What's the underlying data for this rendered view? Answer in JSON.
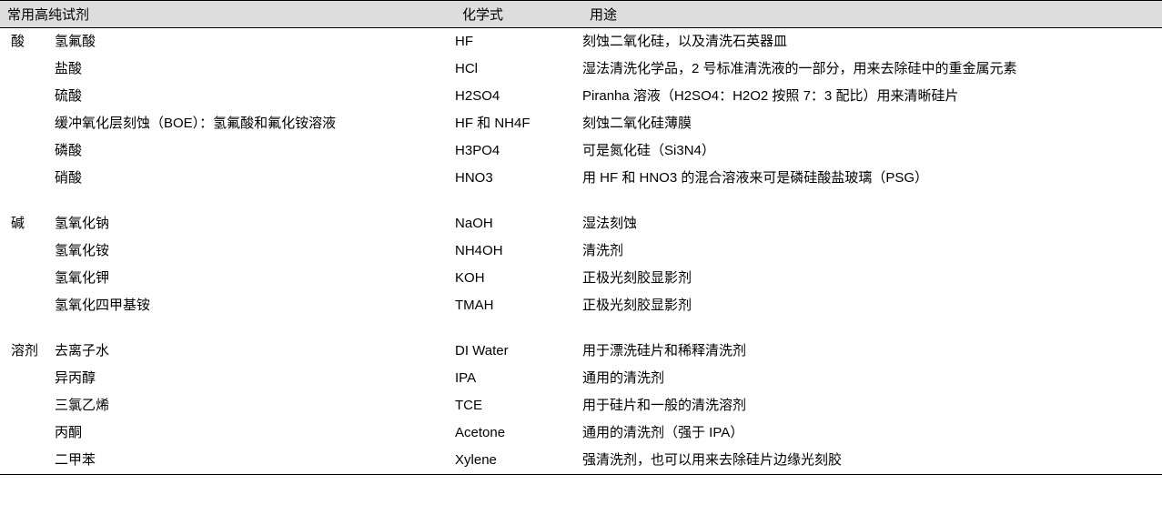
{
  "table": {
    "header": {
      "reagent": "常用高纯试剂",
      "formula": "化学式",
      "usage": "用途"
    },
    "colors": {
      "header_bg": "#dddddd",
      "border": "#000000",
      "text": "#000000",
      "background": "#ffffff"
    },
    "font_size": 15,
    "sections": [
      {
        "category": "酸",
        "rows": [
          {
            "name": "氢氟酸",
            "formula": "HF",
            "usage": "刻蚀二氧化硅，以及清洗石英器皿"
          },
          {
            "name": "盐酸",
            "formula": "HCl",
            "usage": "湿法清洗化学品，2 号标准清洗液的一部分，用来去除硅中的重金属元素"
          },
          {
            "name": "硫酸",
            "formula": "H2SO4",
            "usage": "Piranha 溶液（H2SO4：H2O2 按照 7：3 配比）用来清晰硅片"
          },
          {
            "name": "缓冲氧化层刻蚀（BOE）：氢氟酸和氟化铵溶液",
            "formula": "HF 和 NH4F",
            "usage": "刻蚀二氧化硅薄膜"
          },
          {
            "name": "磷酸",
            "formula": "H3PO4",
            "usage": "可是氮化硅（Si3N4）"
          },
          {
            "name": "硝酸",
            "formula": "HNO3",
            "usage": "用 HF 和 HNO3 的混合溶液来可是磷硅酸盐玻璃（PSG）"
          }
        ]
      },
      {
        "category": "碱",
        "rows": [
          {
            "name": "氢氧化钠",
            "formula": "NaOH",
            "usage": "湿法刻蚀"
          },
          {
            "name": "氢氧化铵",
            "formula": "NH4OH",
            "usage": "清洗剂"
          },
          {
            "name": "氢氧化钾",
            "formula": "KOH",
            "usage": "正极光刻胶显影剂"
          },
          {
            "name": "氢氧化四甲基铵",
            "formula": "TMAH",
            "usage": "正极光刻胶显影剂"
          }
        ]
      },
      {
        "category": "溶剂",
        "rows": [
          {
            "name": "去离子水",
            "formula": "DI Water",
            "usage": "用于漂洗硅片和稀释清洗剂"
          },
          {
            "name": "异丙醇",
            "formula": "IPA",
            "usage": "通用的清洗剂"
          },
          {
            "name": "三氯乙烯",
            "formula": "TCE",
            "usage": "用于硅片和一般的清洗溶剂"
          },
          {
            "name": "丙酮",
            "formula": "Acetone",
            "usage": "通用的清洗剂（强于 IPA）"
          },
          {
            "name": "二甲苯",
            "formula": "Xylene",
            "usage": "强清洗剂，也可以用来去除硅片边缘光刻胶"
          }
        ]
      }
    ]
  }
}
